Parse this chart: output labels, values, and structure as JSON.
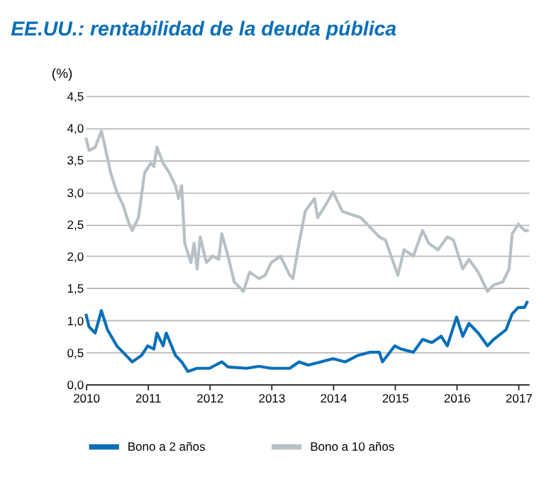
{
  "chart_data": {
    "type": "line",
    "title": "EE.UU.: rentabilidad de la deuda pública",
    "ylabel": "(%)",
    "xlim": [
      2010,
      2017.17
    ],
    "xticks": [
      2010,
      2011,
      2012,
      2013,
      2014,
      2015,
      2016,
      2017
    ],
    "ylim": [
      0,
      4.5
    ],
    "yticks": [
      {
        "value": 0,
        "label": "0,0"
      },
      {
        "value": 0.5,
        "label": "0,5"
      },
      {
        "value": 1,
        "label": "1,0"
      },
      {
        "value": 1.5,
        "label": "1,5"
      },
      {
        "value": 2,
        "label": "2,0"
      },
      {
        "value": 2.5,
        "label": "2,5"
      },
      {
        "value": 3,
        "label": "3,0"
      },
      {
        "value": 3.5,
        "label": "3,5"
      },
      {
        "value": 4,
        "label": "4,0"
      },
      {
        "value": 4.5,
        "label": "4,5"
      }
    ],
    "grid": "y",
    "legend": "bottom",
    "series": [
      {
        "name": "Bono a 2 años",
        "color": "#0a6fb7",
        "x": [
          2010.0,
          2010.05,
          2010.15,
          2010.25,
          2010.35,
          2010.5,
          2010.65,
          2010.75,
          2010.9,
          2011.0,
          2011.1,
          2011.15,
          2011.25,
          2011.3,
          2011.45,
          2011.55,
          2011.65,
          2011.8,
          2012.0,
          2012.2,
          2012.3,
          2012.6,
          2012.8,
          2013.0,
          2013.3,
          2013.45,
          2013.6,
          2013.8,
          2014.0,
          2014.2,
          2014.4,
          2014.6,
          2014.75,
          2014.8,
          2015.0,
          2015.1,
          2015.3,
          2015.45,
          2015.6,
          2015.75,
          2015.85,
          2016.0,
          2016.1,
          2016.2,
          2016.35,
          2016.5,
          2016.6,
          2016.8,
          2016.9,
          2017.0,
          2017.1,
          2017.15
        ],
        "values": [
          1.1,
          0.9,
          0.8,
          1.15,
          0.85,
          0.6,
          0.45,
          0.35,
          0.45,
          0.6,
          0.55,
          0.8,
          0.6,
          0.8,
          0.45,
          0.35,
          0.2,
          0.25,
          0.25,
          0.35,
          0.27,
          0.25,
          0.28,
          0.25,
          0.25,
          0.35,
          0.3,
          0.35,
          0.4,
          0.35,
          0.45,
          0.5,
          0.5,
          0.35,
          0.6,
          0.55,
          0.5,
          0.7,
          0.65,
          0.75,
          0.6,
          1.05,
          0.75,
          0.95,
          0.8,
          0.6,
          0.7,
          0.85,
          1.1,
          1.2,
          1.2,
          1.3
        ]
      },
      {
        "name": "Bono a 10 años",
        "color": "#b7c1c5",
        "x": [
          2010.0,
          2010.05,
          2010.15,
          2010.25,
          2010.3,
          2010.4,
          2010.5,
          2010.6,
          2010.7,
          2010.75,
          2010.85,
          2010.95,
          2011.05,
          2011.1,
          2011.15,
          2011.25,
          2011.35,
          2011.45,
          2011.5,
          2011.55,
          2011.6,
          2011.7,
          2011.75,
          2011.8,
          2011.85,
          2011.95,
          2012.05,
          2012.15,
          2012.2,
          2012.3,
          2012.4,
          2012.55,
          2012.65,
          2012.8,
          2012.9,
          2013.0,
          2013.15,
          2013.3,
          2013.35,
          2013.45,
          2013.55,
          2013.7,
          2013.75,
          2013.85,
          2014.0,
          2014.15,
          2014.3,
          2014.45,
          2014.6,
          2014.75,
          2014.85,
          2015.05,
          2015.15,
          2015.3,
          2015.45,
          2015.55,
          2015.7,
          2015.85,
          2015.95,
          2016.1,
          2016.2,
          2016.35,
          2016.5,
          2016.6,
          2016.75,
          2016.85,
          2016.9,
          2017.0,
          2017.1,
          2017.17
        ],
        "values": [
          3.85,
          3.65,
          3.7,
          3.95,
          3.75,
          3.3,
          3.0,
          2.8,
          2.5,
          2.4,
          2.6,
          3.3,
          3.45,
          3.4,
          3.7,
          3.45,
          3.3,
          3.1,
          2.9,
          3.1,
          2.2,
          1.9,
          2.2,
          1.8,
          2.3,
          1.9,
          2.0,
          1.95,
          2.35,
          2.0,
          1.6,
          1.45,
          1.75,
          1.65,
          1.7,
          1.9,
          2.0,
          1.7,
          1.65,
          2.2,
          2.7,
          2.9,
          2.6,
          2.75,
          3.0,
          2.7,
          2.65,
          2.6,
          2.45,
          2.3,
          2.25,
          1.7,
          2.1,
          2.0,
          2.4,
          2.2,
          2.1,
          2.3,
          2.25,
          1.8,
          1.95,
          1.75,
          1.45,
          1.55,
          1.6,
          1.8,
          2.35,
          2.5,
          2.4,
          2.4
        ]
      }
    ]
  }
}
